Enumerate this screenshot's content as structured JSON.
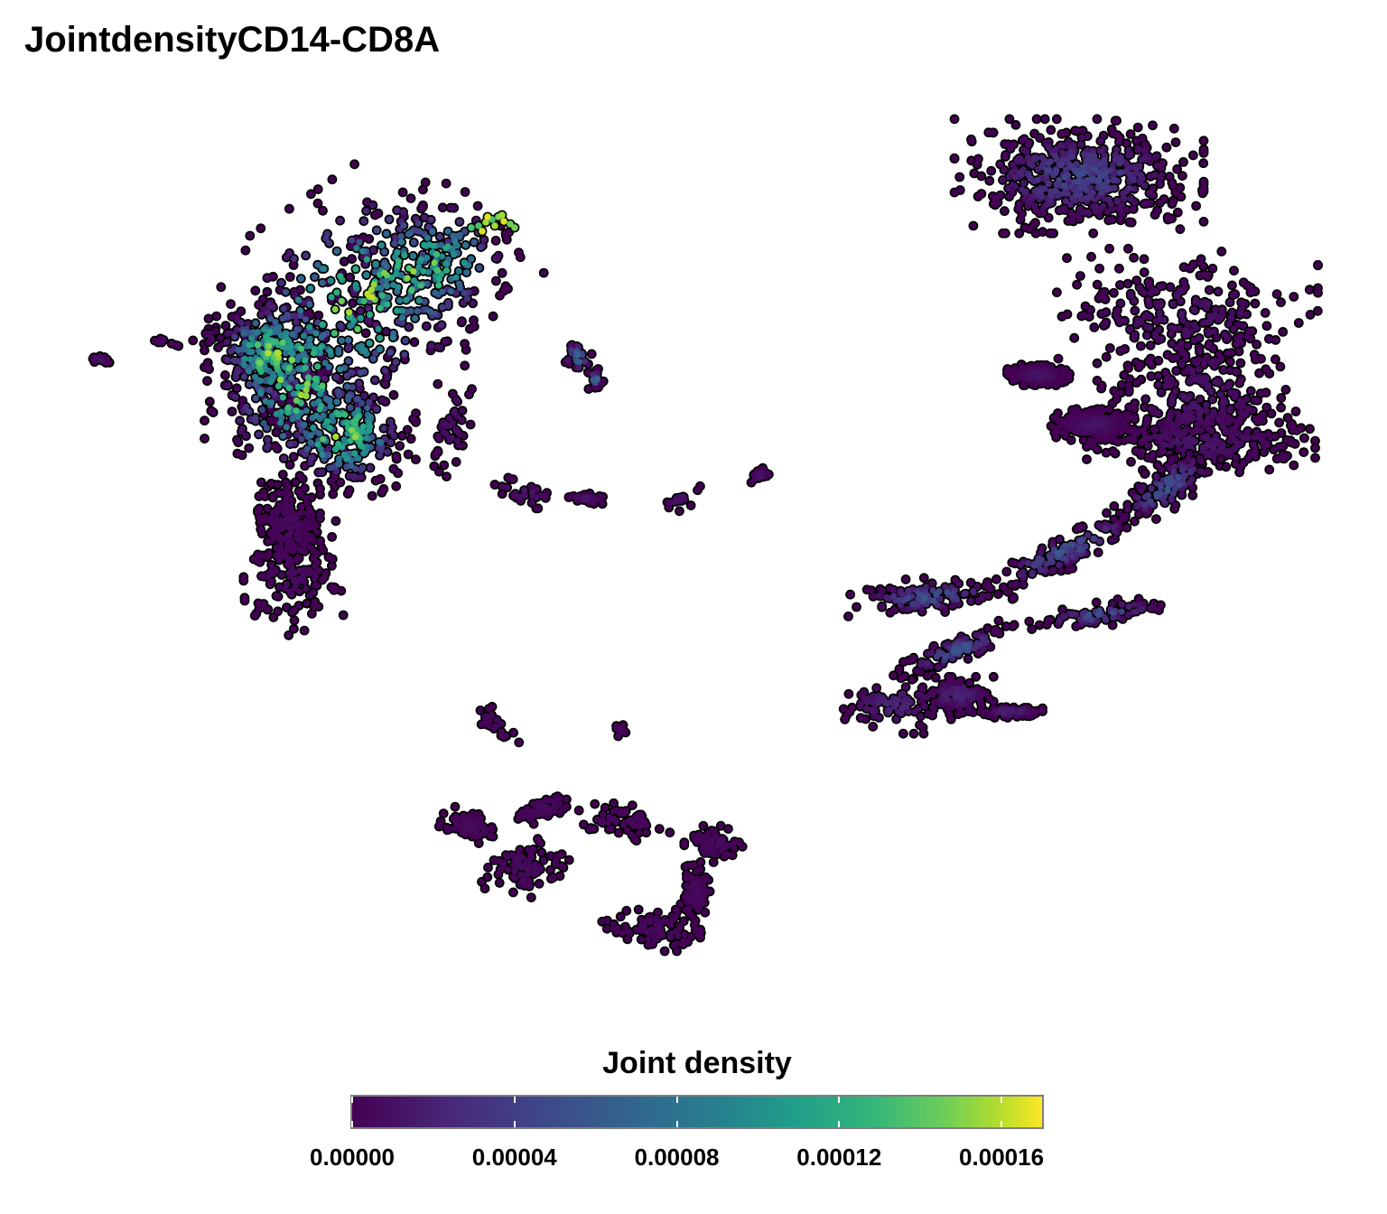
{
  "chart_data": {
    "type": "scatter",
    "title": "JointdensityCD14-CD8A",
    "xlabel": "",
    "ylabel": "",
    "axes_visible": false,
    "grid": false,
    "point_outline_color": "#000000",
    "colormap": "viridis",
    "legend": {
      "title": "Joint density",
      "placement": "bottom",
      "range": [
        0,
        0.00017
      ],
      "ticks": [
        0.0,
        4e-05,
        8e-05,
        0.00012,
        0.00016
      ],
      "tick_labels": [
        "0.00000",
        "0.00004",
        "0.00008",
        "0.00012",
        "0.00016"
      ],
      "colors": [
        "#440154",
        "#482878",
        "#3e4989",
        "#31688e",
        "#26828e",
        "#1f9e89",
        "#35b779",
        "#6ece58",
        "#b5de2b",
        "#fde725"
      ]
    },
    "clusters": [
      {
        "id": "upper-left-main",
        "x": -8.0,
        "y": 6.5,
        "density_min": 0.0,
        "density_max": 0.00016,
        "peak_density": 0.00016
      },
      {
        "id": "upper-left-lower-lobe",
        "x": -9.5,
        "y": 0.5,
        "density_min": 0.0,
        "density_max": 5e-06
      },
      {
        "id": "upper-left-tail",
        "x": -12.0,
        "y": 5.5,
        "density_min": 0.0,
        "density_max": 1e-05
      },
      {
        "id": "small-arc",
        "x": -3.5,
        "y": 5.3,
        "density_min": 0.0,
        "density_max": 7e-05
      },
      {
        "id": "mid-strand-left",
        "x": -4.5,
        "y": 2.8,
        "density_min": 0.0,
        "density_max": 1e-05
      },
      {
        "id": "mid-strand-center",
        "x": -1.5,
        "y": 2.8,
        "density_min": 0.0,
        "density_max": 1e-05
      },
      {
        "id": "lower-ring",
        "x": -2.0,
        "y": -5.5,
        "density_min": 0.0,
        "density_max": 5e-06
      },
      {
        "id": "lower-small",
        "x": -4.5,
        "y": -2.8,
        "density_min": 0.0,
        "density_max": 5e-06
      },
      {
        "id": "upper-right-top",
        "x": 7.0,
        "y": 9.0,
        "density_min": 0.0,
        "density_max": 4e-05
      },
      {
        "id": "upper-right-main",
        "x": 9.0,
        "y": 4.5,
        "density_min": 0.0,
        "density_max": 1e-05
      },
      {
        "id": "right-strand",
        "x": 6.5,
        "y": 0.5,
        "density_min": 0.0,
        "density_max": 5e-05
      },
      {
        "id": "lower-right",
        "x": 3.5,
        "y": -2.5,
        "density_min": 0.0,
        "density_max": 2e-05
      }
    ]
  }
}
